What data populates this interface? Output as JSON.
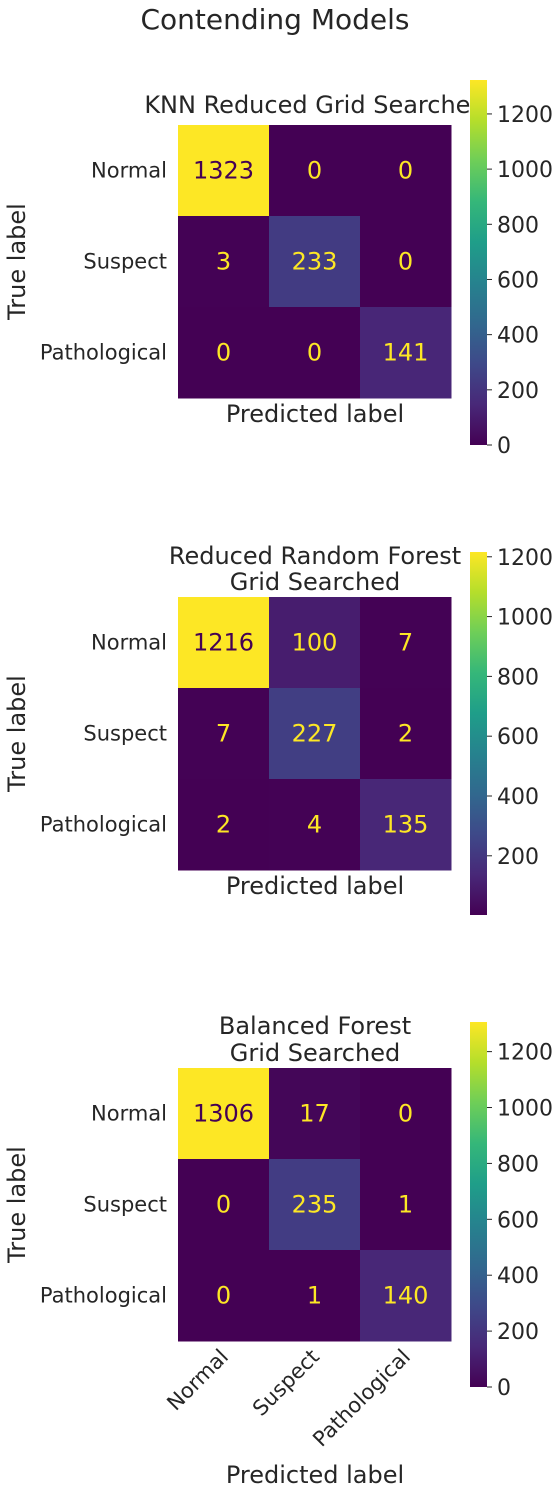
{
  "figure_title": "Contending Models",
  "colormap_stops": [
    "#440154",
    "#482878",
    "#3e4989",
    "#31688e",
    "#26828e",
    "#1f9e89",
    "#35b779",
    "#6ece58",
    "#b5de2b",
    "#fde725"
  ],
  "text_colors": {
    "on_dark": "#fde725",
    "on_light": "#440154"
  },
  "chart_data": [
    {
      "type": "heatmap",
      "title": "KNN Reduced Grid Searched",
      "xlabel": "Predicted label",
      "ylabel": "True label",
      "categories": [
        "Normal",
        "Suspect",
        "Pathological"
      ],
      "show_x_ticklabels": false,
      "matrix": [
        [
          1323,
          0,
          0
        ],
        [
          3,
          233,
          0
        ],
        [
          0,
          0,
          141
        ]
      ],
      "vmin": 0,
      "vmax": 1323,
      "colorbar_ticks": [
        0,
        200,
        400,
        600,
        800,
        1000,
        1200
      ],
      "grid": false
    },
    {
      "type": "heatmap",
      "title": "Reduced Random Forest Grid Searched",
      "xlabel": "Predicted label",
      "ylabel": "True label",
      "categories": [
        "Normal",
        "Suspect",
        "Pathological"
      ],
      "show_x_ticklabels": false,
      "matrix": [
        [
          1216,
          100,
          7
        ],
        [
          7,
          227,
          2
        ],
        [
          2,
          4,
          135
        ]
      ],
      "vmin": 2,
      "vmax": 1216,
      "colorbar_ticks": [
        200,
        400,
        600,
        800,
        1000,
        1200
      ],
      "grid": false
    },
    {
      "type": "heatmap",
      "title": "Balanced Forest Grid Searched",
      "xlabel": "Predicted label",
      "ylabel": "True label",
      "categories": [
        "Normal",
        "Suspect",
        "Pathological"
      ],
      "show_x_ticklabels": true,
      "matrix": [
        [
          1306,
          17,
          0
        ],
        [
          0,
          235,
          1
        ],
        [
          0,
          1,
          140
        ]
      ],
      "vmin": 0,
      "vmax": 1306,
      "colorbar_ticks": [
        0,
        200,
        400,
        600,
        800,
        1000,
        1200
      ],
      "grid": false
    }
  ]
}
